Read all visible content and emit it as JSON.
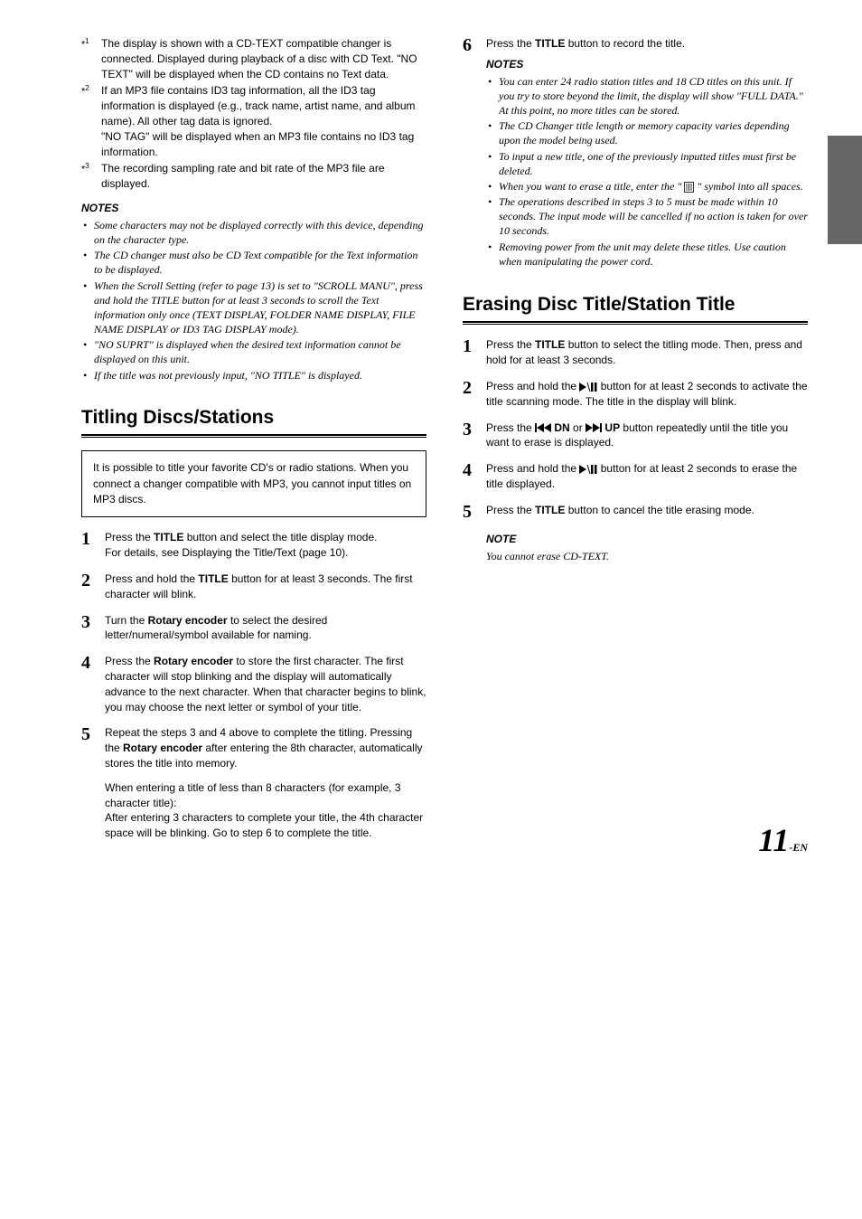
{
  "sup_notes": [
    {
      "mark": "*1",
      "text": "The display is shown with a CD-TEXT compatible changer is connected. Displayed during playback of a disc with CD Text. \"NO TEXT\" will be displayed when the CD contains no Text data."
    },
    {
      "mark": "*2",
      "text1": "If an MP3 file contains ID3 tag information, all the ID3 tag information is displayed  (e.g., track name, artist name, and album name). All other tag data is ignored.",
      "text2": "\"NO TAG\" will be displayed when an MP3 file contains no ID3 tag information."
    },
    {
      "mark": "*3",
      "text": "The recording sampling rate and bit rate of the MP3 file are displayed."
    }
  ],
  "left_notes_header": "NOTES",
  "left_notes": [
    "Some characters may not be displayed correctly with this device, depending on the character type.",
    "The CD changer must also be CD Text compatible for the Text information to be displayed.",
    "When the Scroll Setting (refer to page 13) is set to \"SCROLL MANU\", press and hold the TITLE button for at least 3 seconds to scroll the Text information only once (TEXT DISPLAY, FOLDER NAME DISPLAY, FILE NAME DISPLAY or ID3 TAG DISPLAY mode).",
    "\"NO SUPRT\" is displayed when the desired text information cannot be displayed on this unit.",
    "If the title was not previously input, \"NO TITLE\" is displayed."
  ],
  "titling": {
    "heading": "Titling Discs/Stations",
    "intro": "It is possible to title your favorite CD's or radio stations. When you connect a changer compatible with MP3, you cannot input titles on MP3 discs.",
    "steps": [
      {
        "n": "1",
        "html": "Press the <b>TITLE</b> button and select the title display mode.<br>For details, see Displaying the Title/Text (page 10)."
      },
      {
        "n": "2",
        "html": "Press and hold the <b>TITLE</b> button for at least 3 seconds. The first character will blink."
      },
      {
        "n": "3",
        "html": "Turn the <b>Rotary encoder</b> to select the desired letter/numeral/symbol available for naming."
      },
      {
        "n": "4",
        "html": "Press the <b>Rotary encoder</b> to store the first character. The first character will stop blinking and the display will automatically advance to the next character. When that character begins to blink, you may choose the next letter or symbol of your title."
      },
      {
        "n": "5",
        "html": "Repeat the steps 3 and 4 above to complete the titling. Pressing the <b>Rotary encoder</b> after entering the 8th character, automatically stores the title into memory.<div class=\"extra\">When entering a title of less than 8 characters (for example, 3 character title):<br>After entering 3 characters to complete your title, the 4th character space will be blinking. Go to step 6 to complete the title.</div>"
      }
    ]
  },
  "right_step6": {
    "n": "6",
    "html": "Press the <b>TITLE</b> button to record the title."
  },
  "right_notes_header": "NOTES",
  "right_notes": [
    "You can enter 24 radio station titles and 18 CD titles on this unit. If you try to store beyond the limit, the display will show \"FULL DATA.\" At this point, no more titles can be stored.",
    "The CD Changer title length or memory capacity varies depending upon the model being used.",
    "To input a new title, one of the  previously inputted titles must first be deleted.",
    "__ERASE_ICON__",
    "The operations described in steps 3 to 5 must be made within 10 seconds. The input mode will be cancelled if no action is taken for over 10 seconds.",
    "Removing power from the unit may delete these titles. Use caution when manipulating the power cord."
  ],
  "erase_note_html": "When you want to erase a title, enter the \" <svg class=\"icon-svg\" width=\"11\" height=\"12\" viewBox=\"0 0 11 12\"><rect x=\"0.5\" y=\"0.5\" width=\"10\" height=\"11\" fill=\"none\" stroke=\"#000\" stroke-width=\"0.8\"/><line x1=\"3\" y1=\"2\" x2=\"3\" y2=\"10\" stroke=\"#000\" stroke-width=\"0.8\"/><line x1=\"5.5\" y1=\"2\" x2=\"5.5\" y2=\"10\" stroke=\"#000\" stroke-width=\"0.8\"/><line x1=\"8\" y1=\"2\" x2=\"8\" y2=\"10\" stroke=\"#000\" stroke-width=\"0.8\"/></svg> \" symbol into all spaces.",
  "erasing": {
    "heading": "Erasing Disc Title/Station Title",
    "steps": [
      {
        "n": "1",
        "html": "Press the <b>TITLE</b> button to select the titling mode. Then, press and hold for at least 3 seconds."
      },
      {
        "n": "2",
        "html": "Press and hold the __PLAYPAUSE__ button for at least 2 seconds to activate the title scanning mode. The title in the display will blink."
      },
      {
        "n": "3",
        "html": "Press the __PREV__ <b>DN</b> or __NEXT__ <b>UP</b> button repeatedly until the title you want to erase is displayed."
      },
      {
        "n": "4",
        "html": "Press and hold the __PLAYPAUSE__ button for at least 2 seconds to erase the title displayed."
      },
      {
        "n": "5",
        "html": "Press the <b>TITLE</b> button to cancel the title erasing mode."
      }
    ],
    "note_header": "NOTE",
    "note_text": "You cannot erase CD-TEXT."
  },
  "icons": {
    "playpause": "<svg class=\"icon-svg\" width=\"20\" height=\"10\" viewBox=\"0 0 20 10\"><polygon points=\"0,0 8,5 0,10\" fill=\"#000\"/><line x1=\"9\" y1=\"0\" x2=\"12\" y2=\"10\" stroke=\"#000\" stroke-width=\"1\"/><rect x=\"13\" y=\"0\" width=\"2.5\" height=\"10\" fill=\"#000\"/><rect x=\"17\" y=\"0\" width=\"2.5\" height=\"10\" fill=\"#000\"/></svg>",
    "prev": "<svg class=\"icon-svg\" width=\"18\" height=\"10\" viewBox=\"0 0 18 10\"><rect x=\"0\" y=\"0\" width=\"2\" height=\"10\" fill=\"#000\"/><polygon points=\"10,0 2,5 10,10\" fill=\"#000\"/><polygon points=\"18,0 10,5 18,10\" fill=\"#000\"/></svg>",
    "next": "<svg class=\"icon-svg\" width=\"18\" height=\"10\" viewBox=\"0 0 18 10\"><polygon points=\"0,0 8,5 0,10\" fill=\"#000\"/><polygon points=\"8,0 16,5 8,10\" fill=\"#000\"/><rect x=\"16\" y=\"0\" width=\"2\" height=\"10\" fill=\"#000\"/></svg>"
  },
  "page": {
    "number": "11",
    "suffix": "-EN"
  }
}
